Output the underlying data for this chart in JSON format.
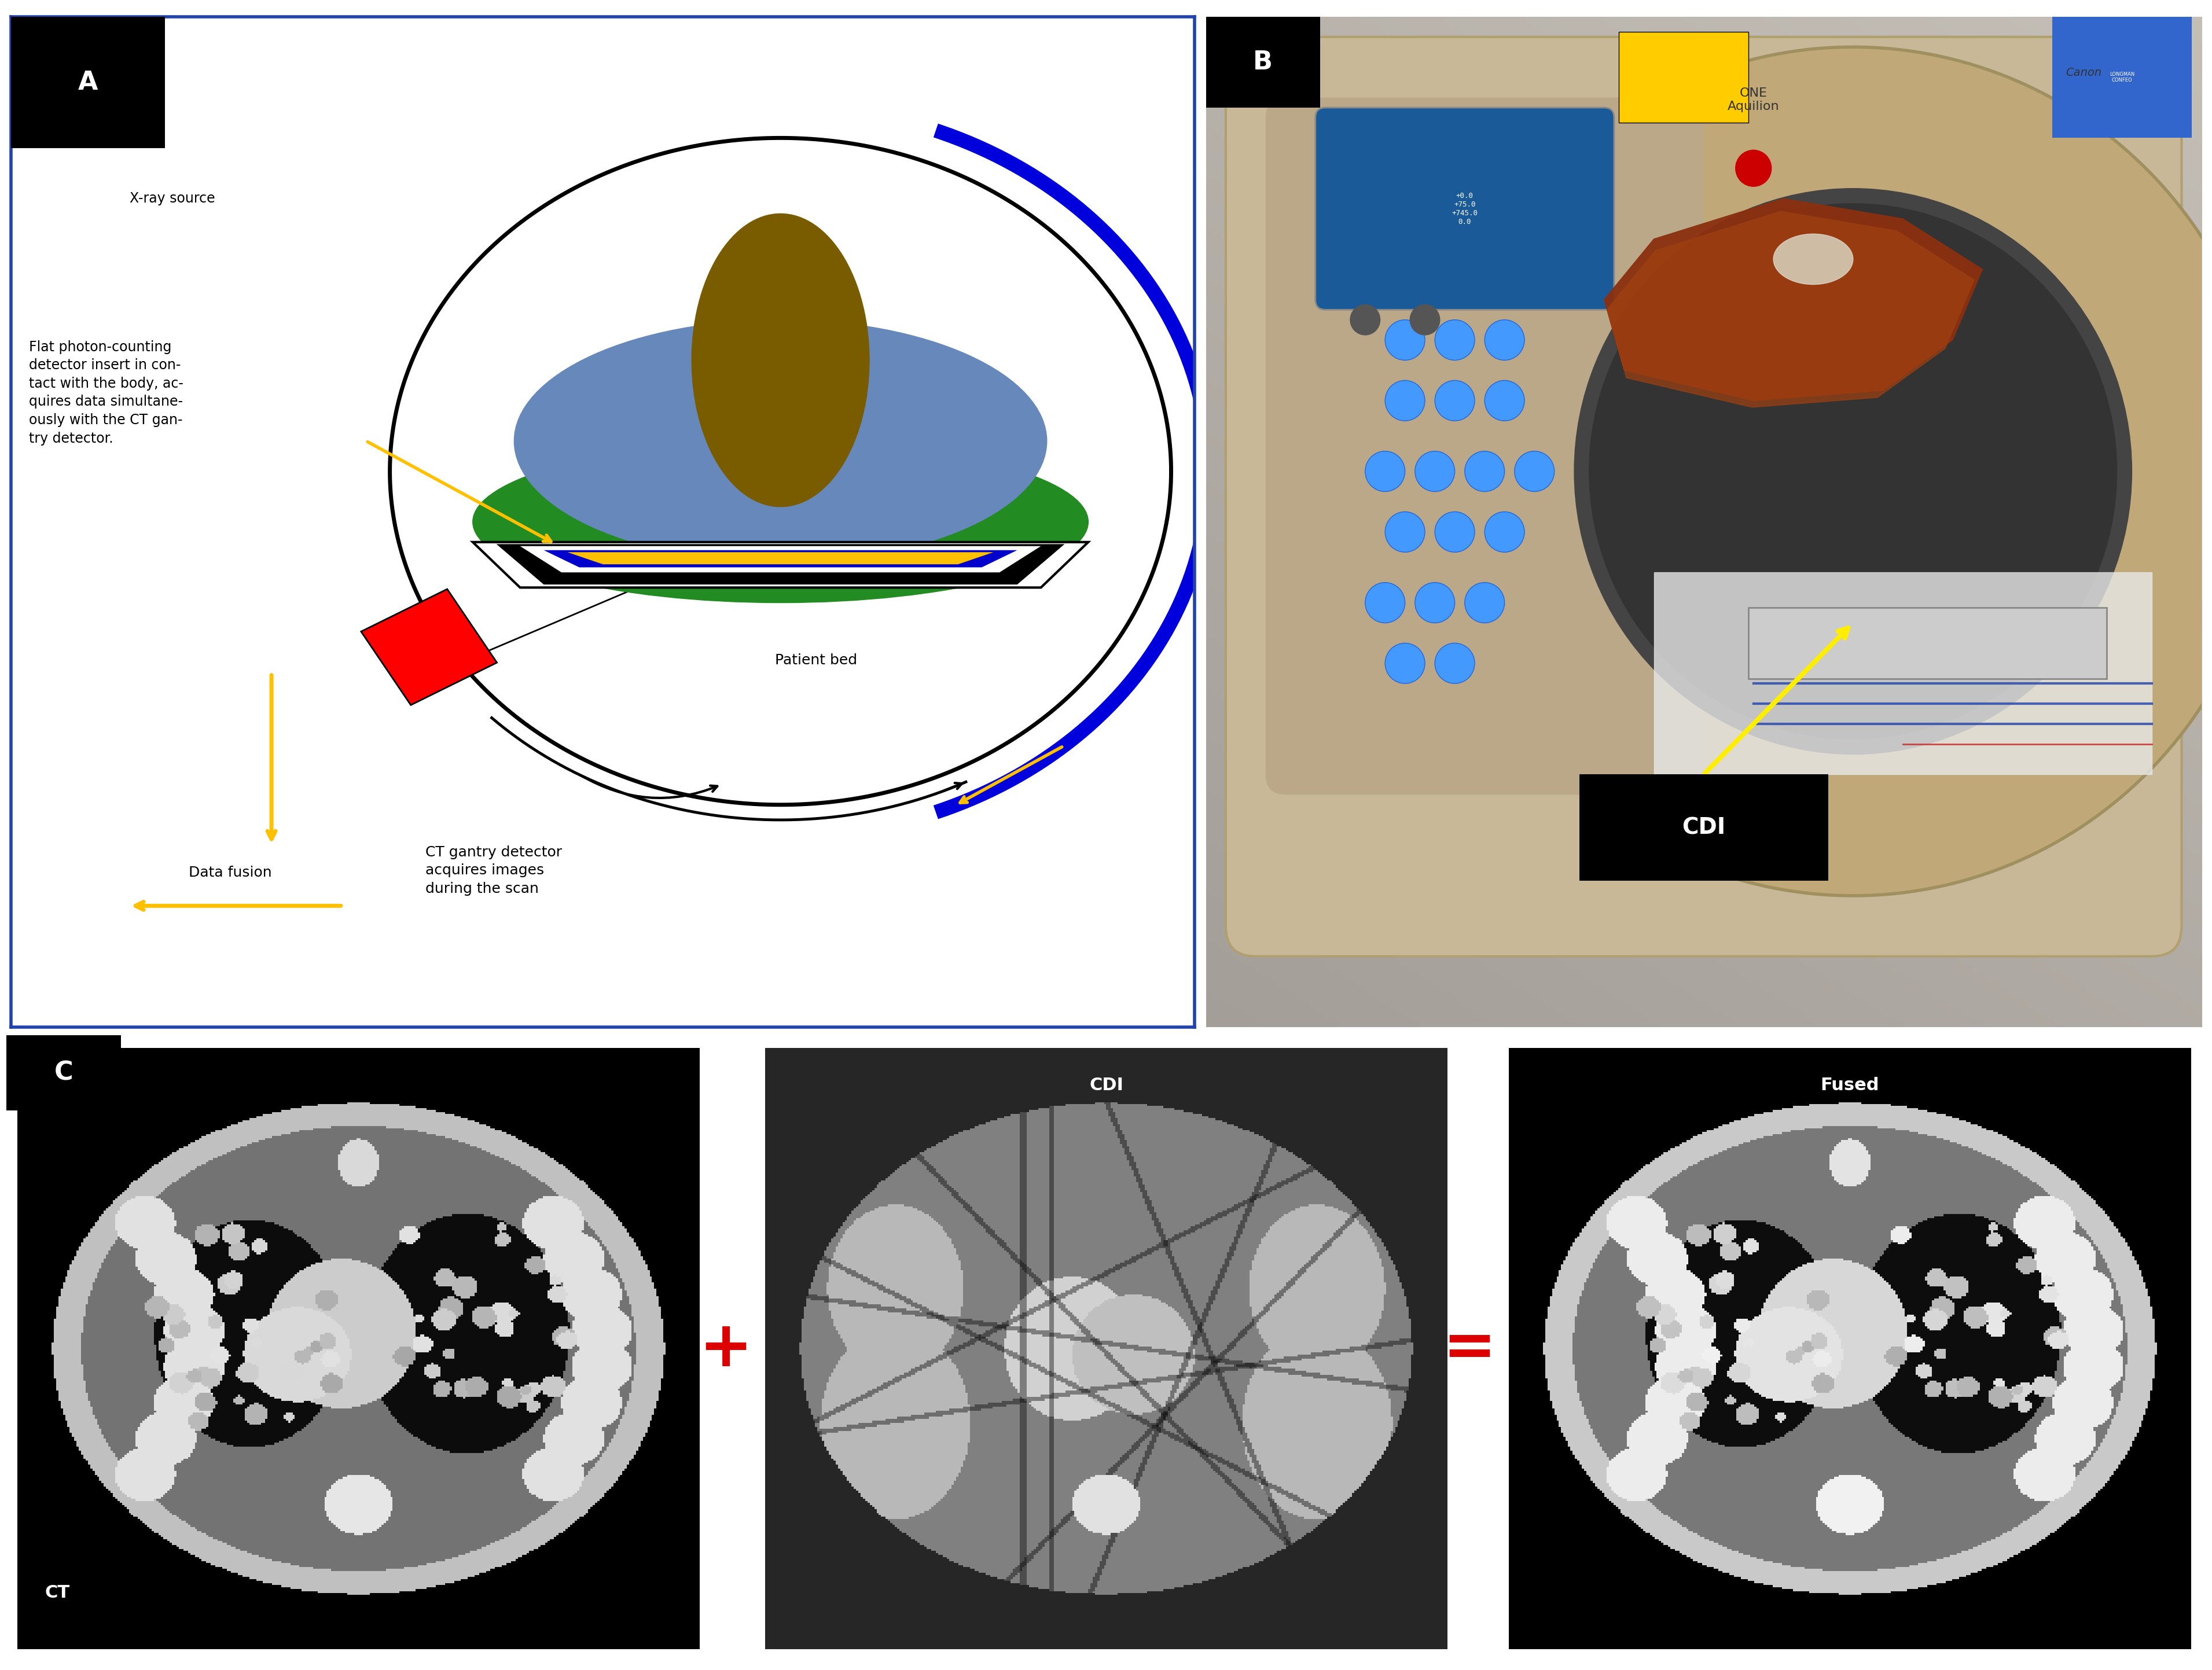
{
  "panel_labels": [
    "A",
    "B",
    "C"
  ],
  "label_bg": "#000000",
  "label_color": "#ffffff",
  "label_fontsize": 32,
  "border_color": "#2244aa",
  "figure_bg": "#ffffff",
  "panel_A": {
    "bg_color": "#ffffff",
    "circle_color": "#000000",
    "circle_lw": 5,
    "blue_arc_color": "#0000dd",
    "blue_arc_lw": 20,
    "body_color": "#6688bb",
    "organ_color": "#7a5c00",
    "bed_color": "#228b22",
    "xray_color": "#ff0000",
    "yellow_color": "#ffc000",
    "text_fontsize": 17,
    "label_fontsize": 30
  },
  "panel_B": {
    "machine_color": "#c8b898",
    "hole_color": "#444444",
    "bg_top": "#b0b0b0",
    "bg_bottom": "#888888",
    "button_color": "#4499ff",
    "screen_color": "#2266aa",
    "specimen_color": "#8B4010",
    "yellow_arrow": "#ffee00",
    "cdi_bg": "#000000",
    "cdi_text": "#ffffff"
  },
  "panel_C": {
    "bg_color": "#111111",
    "plus_color": "#dd0000",
    "equals_color": "#dd0000"
  }
}
